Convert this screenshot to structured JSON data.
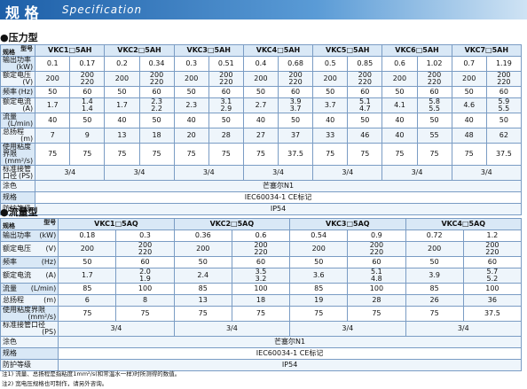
{
  "header": {
    "title": "规 格",
    "subtitle": "Specification"
  },
  "tables": [
    {
      "title": "●压力型",
      "corner_top": "型号",
      "corner_bottom": "规格",
      "models": [
        "VKC1□5AH",
        "VKC2□5AH",
        "VKC3□5AH",
        "VKC4□5AH",
        "VKC5□5AH",
        "VKC6□5AH",
        "VKC7□5AH"
      ],
      "rows": [
        {
          "label": "输出功率",
          "unit": "(kW)",
          "values": [
            0.1,
            0.17,
            0.2,
            0.34,
            0.3,
            0.51,
            0.4,
            0.68,
            0.5,
            0.85,
            0.6,
            1.02,
            0.7,
            1.19
          ]
        },
        {
          "label": "额定电压",
          "unit": "(V)",
          "values": [
            200,
            "200\n220",
            200,
            "200\n220",
            200,
            "200\n220",
            200,
            "200\n220",
            200,
            "200\n220",
            200,
            "200\n220",
            200,
            "200\n220"
          ]
        },
        {
          "label": "频率",
          "unit": "(Hz)",
          "values": [
            50,
            60,
            50,
            60,
            50,
            60,
            50,
            60,
            50,
            60,
            50,
            60,
            50,
            60
          ]
        },
        {
          "label": "额定电流",
          "unit": "(A)",
          "values": [
            1.7,
            "1.4\n1.4",
            1.7,
            "2.3\n2.2",
            2.3,
            "3.1\n2.9",
            2.7,
            "3.9\n3.7",
            3.7,
            "5.1\n4.7",
            4.1,
            "5.8\n5.5",
            4.6,
            "5.9\n5.5"
          ]
        },
        {
          "label": "流量",
          "unit": "(L/min)",
          "values": [
            40,
            50,
            40,
            50,
            40,
            50,
            40,
            50,
            40,
            50,
            40,
            50,
            40,
            50
          ]
        },
        {
          "label": "总扬程",
          "unit": "(m)",
          "values": [
            7,
            9,
            13,
            18,
            20,
            28,
            27,
            37,
            33,
            46,
            40,
            55,
            48,
            62
          ]
        },
        {
          "label": "使用粘度界限",
          "unit": "(mm²/s)",
          "values": [
            75,
            75,
            75,
            75,
            75,
            75,
            75,
            37.5,
            75,
            75,
            75,
            75,
            75,
            37.5
          ]
        }
      ],
      "model_rows": [
        {
          "label": "标准接管口径",
          "unit": "(PS)",
          "values": [
            "3/4",
            "3/4",
            "3/4",
            "3/4",
            "3/4",
            "3/4",
            "3/4"
          ]
        }
      ],
      "shared_rows": [
        {
          "label": "涂色",
          "value": "芒塞尔N1"
        },
        {
          "label": "规格",
          "value": "IEC60034-1 CE标记"
        },
        {
          "label": "防护等级",
          "value": "IP54"
        }
      ]
    },
    {
      "title": "●流量型",
      "corner_top": "型号",
      "corner_bottom": "规格",
      "models": [
        "VKC1□5AQ",
        "VKC2□5AQ",
        "VKC3□5AQ",
        "VKC4□5AQ"
      ],
      "rows": [
        {
          "label": "输出功率",
          "unit": "(kW)",
          "values": [
            0.18,
            0.3,
            0.36,
            0.6,
            0.54,
            0.9,
            0.72,
            1.2
          ]
        },
        {
          "label": "额定电压",
          "unit": "(V)",
          "values": [
            200,
            "200\n220",
            200,
            "200\n220",
            200,
            "200\n220",
            200,
            "200\n220"
          ]
        },
        {
          "label": "频率",
          "unit": "(Hz)",
          "values": [
            50,
            60,
            50,
            60,
            50,
            60,
            50,
            60
          ]
        },
        {
          "label": "额定电流",
          "unit": "(A)",
          "values": [
            1.7,
            "2.0\n1.9",
            2.4,
            "3.5\n3.2",
            3.6,
            "5.1\n4.8",
            3.9,
            "5.7\n5.2"
          ]
        },
        {
          "label": "流量",
          "unit": "(L/min)",
          "values": [
            85,
            100,
            85,
            100,
            85,
            100,
            85,
            100
          ]
        },
        {
          "label": "总扬程",
          "unit": "(m)",
          "values": [
            6,
            8,
            13,
            18,
            19,
            28,
            26,
            36
          ]
        },
        {
          "label": "使用粘度界限",
          "unit": "(mm²/s)",
          "values": [
            75,
            75,
            75,
            75,
            75,
            75,
            75,
            37.5
          ]
        }
      ],
      "model_rows": [
        {
          "label": "标准接管口径",
          "unit": "(PS)",
          "values": [
            "3/4",
            "3/4",
            "3/4",
            "3/4"
          ]
        }
      ],
      "shared_rows": [
        {
          "label": "涂色",
          "value": "芒塞尔N1"
        },
        {
          "label": "规格",
          "value": "IEC60034-1 CE标记"
        },
        {
          "label": "防护等级",
          "value": "IP54"
        }
      ]
    }
  ],
  "notes": [
    "注1) 流量、总扬程是指粘度1mm²/s(和常温水一样)时所测得的数值。",
    "注2) 宽电压规格也可制作，请另外咨询。"
  ]
}
